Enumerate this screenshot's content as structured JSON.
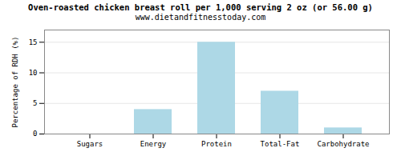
{
  "chart_data": {
    "type": "bar",
    "title": "Oven-roasted chicken breast roll per 1,000 serving 2 oz (or 56.00 g)",
    "subtitle": "www.dietandfitnesstoday.com",
    "categories": [
      "Sugars",
      "Energy",
      "Protein",
      "Total-Fat",
      "Carbohydrate"
    ],
    "values": [
      0,
      4,
      15,
      7,
      1
    ],
    "color": "#add8e6",
    "ylabel": "Percentage of RDH (%)",
    "ylim": [
      0,
      17
    ],
    "yticks": [
      0,
      5,
      10,
      15
    ],
    "grid": true
  }
}
